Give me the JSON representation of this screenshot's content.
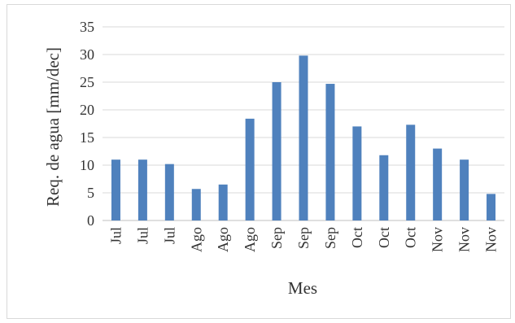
{
  "chart_data": {
    "type": "bar",
    "title": "",
    "xlabel": "Mes",
    "ylabel": "Req. de agua [mm/dec]",
    "categories": [
      "Jul",
      "Jul",
      "Jul",
      "Ago",
      "Ago",
      "Ago",
      "Sep",
      "Sep",
      "Sep",
      "Oct",
      "Oct",
      "Oct",
      "Nov",
      "Nov",
      "Nov"
    ],
    "series": [
      {
        "values": [
          11.0,
          11.0,
          10.2,
          5.7,
          6.5,
          18.4,
          25.0,
          29.8,
          24.7,
          17.0,
          11.8,
          17.3,
          13.0,
          11.0,
          4.8
        ]
      }
    ],
    "ylim": [
      0,
      35
    ],
    "yticks": [
      0,
      5,
      10,
      15,
      20,
      25,
      30,
      35
    ],
    "grid": true,
    "legend": "none",
    "bar_color": "#4f81bd"
  }
}
